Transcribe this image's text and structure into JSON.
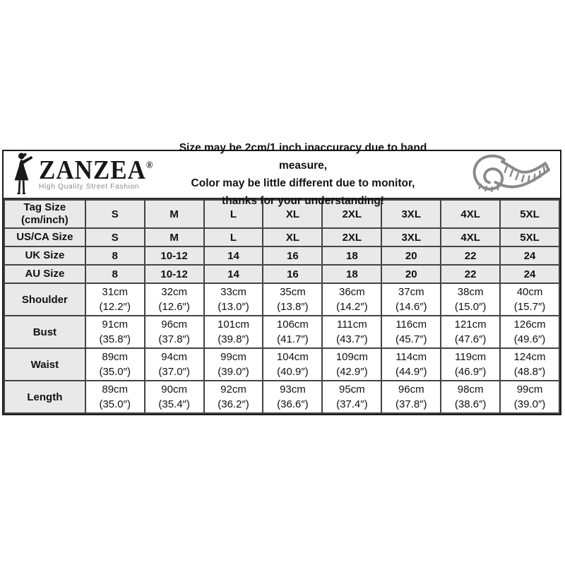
{
  "brand": {
    "name": "ZANZEA",
    "registered": "®",
    "tagline": "High Quality Street Fashion"
  },
  "disclaimer": {
    "line1": "Size may be 2cm/1 inch inaccuracy due to hand measure,",
    "line2": "Color may be little different due to monitor,",
    "line3": "thanks for your understanding!"
  },
  "colors": {
    "shaded_cell": "#e9e9e9",
    "plain_cell": "#ffffff",
    "border": "#444444",
    "outer_border": "#1c1c1c",
    "tape_icon": "#8a8a8a",
    "tagline_text": "#8a8a8a",
    "text": "#111111"
  },
  "icons": {
    "logo_figure": "woman-silhouette-icon",
    "tape": "measuring-tape-icon"
  },
  "chart_data": {
    "type": "table",
    "title": "ZANZEA size chart",
    "columns": [
      "S",
      "M",
      "L",
      "XL",
      "2XL",
      "3XL",
      "4XL",
      "5XL"
    ],
    "rows": [
      {
        "label": "Tag Size",
        "sublabel": "(cm/inch)",
        "shaded": true,
        "values": [
          "S",
          "M",
          "L",
          "XL",
          "2XL",
          "3XL",
          "4XL",
          "5XL"
        ]
      },
      {
        "label": "US/CA Size",
        "shaded": true,
        "values": [
          "S",
          "M",
          "L",
          "XL",
          "2XL",
          "3XL",
          "4XL",
          "5XL"
        ]
      },
      {
        "label": "UK Size",
        "shaded": true,
        "values": [
          "8",
          "10-12",
          "14",
          "16",
          "18",
          "20",
          "22",
          "24"
        ]
      },
      {
        "label": "AU Size",
        "shaded": true,
        "values": [
          "8",
          "10-12",
          "14",
          "16",
          "18",
          "20",
          "22",
          "24"
        ]
      },
      {
        "label": "Shoulder",
        "shaded": false,
        "values": [
          {
            "cm": "31cm",
            "in": "(12.2″)"
          },
          {
            "cm": "32cm",
            "in": "(12.6″)"
          },
          {
            "cm": "33cm",
            "in": "(13.0″)"
          },
          {
            "cm": "35cm",
            "in": "(13.8″)"
          },
          {
            "cm": "36cm",
            "in": "(14.2″)"
          },
          {
            "cm": "37cm",
            "in": "(14.6″)"
          },
          {
            "cm": "38cm",
            "in": "(15.0″)"
          },
          {
            "cm": "40cm",
            "in": "(15.7″)"
          }
        ]
      },
      {
        "label": "Bust",
        "shaded": false,
        "values": [
          {
            "cm": "91cm",
            "in": "(35.8″)"
          },
          {
            "cm": "96cm",
            "in": "(37.8″)"
          },
          {
            "cm": "101cm",
            "in": "(39.8″)"
          },
          {
            "cm": "106cm",
            "in": "(41.7″)"
          },
          {
            "cm": "111cm",
            "in": "(43.7″)"
          },
          {
            "cm": "116cm",
            "in": "(45.7″)"
          },
          {
            "cm": "121cm",
            "in": "(47.6″)"
          },
          {
            "cm": "126cm",
            "in": "(49.6″)"
          }
        ]
      },
      {
        "label": "Waist",
        "shaded": false,
        "values": [
          {
            "cm": "89cm",
            "in": "(35.0″)"
          },
          {
            "cm": "94cm",
            "in": "(37.0″)"
          },
          {
            "cm": "99cm",
            "in": "(39.0″)"
          },
          {
            "cm": "104cm",
            "in": "(40.9″)"
          },
          {
            "cm": "109cm",
            "in": "(42.9″)"
          },
          {
            "cm": "114cm",
            "in": "(44.9″)"
          },
          {
            "cm": "119cm",
            "in": "(46.9″)"
          },
          {
            "cm": "124cm",
            "in": "(48.8″)"
          }
        ]
      },
      {
        "label": "Length",
        "shaded": false,
        "values": [
          {
            "cm": "89cm",
            "in": "(35.0″)"
          },
          {
            "cm": "90cm",
            "in": "(35.4″)"
          },
          {
            "cm": "92cm",
            "in": "(36.2″)"
          },
          {
            "cm": "93cm",
            "in": "(36.6″)"
          },
          {
            "cm": "95cm",
            "in": "(37.4″)"
          },
          {
            "cm": "96cm",
            "in": "(37.8″)"
          },
          {
            "cm": "98cm",
            "in": "(38.6″)"
          },
          {
            "cm": "99cm",
            "in": "(39.0″)"
          }
        ]
      }
    ]
  }
}
